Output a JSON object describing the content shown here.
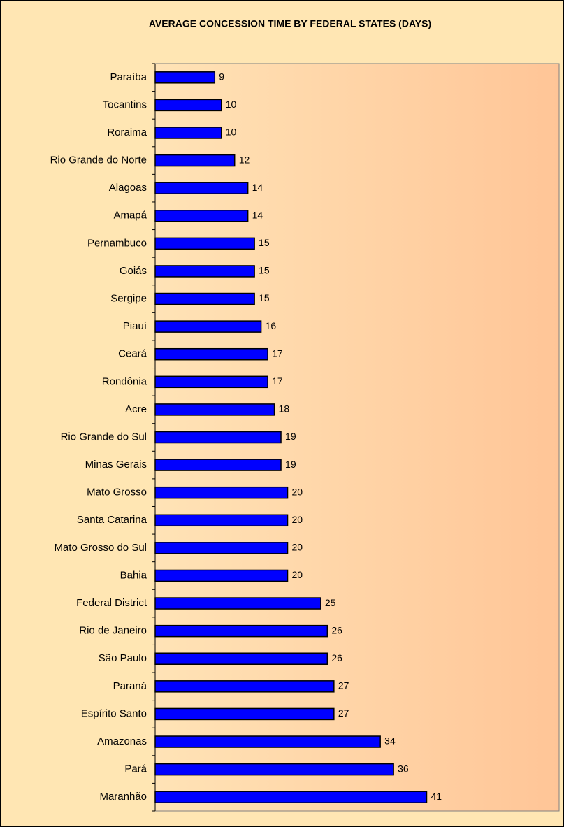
{
  "chart_data": {
    "type": "bar",
    "orientation": "horizontal",
    "title": "AVERAGE CONCESSION TIME BY FEDERAL STATES (DAYS)",
    "categories": [
      "Paraíba",
      "Tocantins",
      "Roraima",
      "Rio Grande do Norte",
      "Alagoas",
      "Amapá",
      "Pernambuco",
      "Goiás",
      "Sergipe",
      "Piauí",
      "Ceará",
      "Rondônia",
      "Acre",
      "Rio Grande do Sul",
      "Minas Gerais",
      "Mato Grosso",
      "Santa Catarina",
      "Mato Grosso do Sul",
      "Bahia",
      "Federal District",
      "Rio de Janeiro",
      "São Paulo",
      "Paraná",
      "Espírito Santo",
      "Amazonas",
      "Pará",
      "Maranhão"
    ],
    "values": [
      9,
      10,
      10,
      12,
      14,
      14,
      15,
      15,
      15,
      16,
      17,
      17,
      18,
      19,
      19,
      20,
      20,
      20,
      20,
      25,
      26,
      26,
      27,
      27,
      34,
      36,
      41
    ],
    "color": "#0000ff",
    "xlim": [
      0,
      61
    ]
  }
}
